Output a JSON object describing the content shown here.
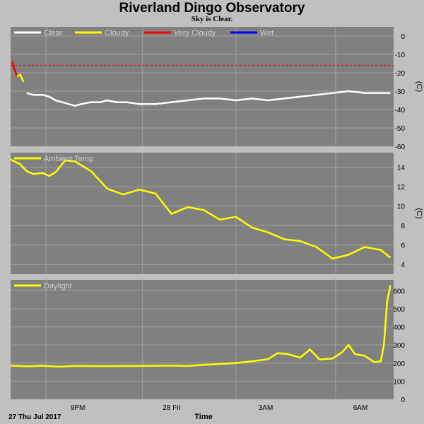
{
  "title": "Riverland Dingo Observatory",
  "subtitle": "Sky is Clear.",
  "colors": {
    "background": "#c0c0c0",
    "plot_bg": "#808080",
    "grid": "#a0a0a0",
    "clear": "#ffffff",
    "cloudy": "#ffff00",
    "very_cloudy": "#ff0000",
    "wet": "#0000ff",
    "threshold": "#ff0000"
  },
  "x_axis": {
    "ticks": [
      "9PM",
      "28 Fri",
      "3AM",
      "6AM"
    ],
    "start_label": "27 Thu Jul 2017",
    "xlabel": "Time"
  },
  "chart_data": [
    {
      "type": "line",
      "name": "sky-temperature",
      "ylabel": "(C)",
      "ylim": [
        -60,
        5
      ],
      "yticks": [
        0,
        -10,
        -20,
        -30,
        -40,
        -50,
        -60
      ],
      "grid": true,
      "legend_position": "top-left",
      "legend": [
        "Clear",
        "Cloudy",
        "Very Cloudy",
        "Wet"
      ],
      "threshold": -16,
      "x": [
        0,
        0.2,
        0.4,
        0.5,
        0.7,
        1.0,
        1.2,
        1.4,
        1.6,
        1.8,
        2.0,
        2.2,
        2.5,
        2.8,
        3.0,
        3.3,
        3.6,
        4.0,
        4.5,
        5.0,
        5.5,
        6.0,
        6.5,
        7.0,
        7.5,
        8.0,
        8.5,
        9.0,
        9.5,
        10.0,
        10.5,
        11.0,
        11.5,
        11.8
      ],
      "series": [
        {
          "name": "Very Cloudy",
          "x": [
            0.05,
            0.12,
            0.2
          ],
          "values": [
            -14,
            -18,
            -22
          ]
        },
        {
          "name": "Cloudy",
          "x": [
            0.2,
            0.3,
            0.4
          ],
          "values": [
            -22,
            -21,
            -25
          ]
        },
        {
          "name": "Clear",
          "values": [
            null,
            null,
            null,
            -31,
            -32,
            -32,
            -33,
            -35,
            -36,
            -37,
            -38,
            -37,
            -36,
            -36,
            -35,
            -36,
            -36,
            -37,
            -37,
            -36,
            -35,
            -34,
            -34,
            -35,
            -34,
            -35,
            -34,
            -33,
            -32,
            -31,
            -30,
            -31,
            -31,
            -31
          ]
        }
      ]
    },
    {
      "type": "line",
      "name": "ambient-temperature",
      "ylabel": "(C)",
      "ylim": [
        3,
        15.5
      ],
      "yticks": [
        14,
        12,
        10,
        8,
        6,
        4
      ],
      "grid": true,
      "legend_position": "top-left",
      "series": [
        {
          "name": "Ambient Temp",
          "x": [
            0,
            0.3,
            0.5,
            0.7,
            1.0,
            1.2,
            1.4,
            1.7,
            2.0,
            2.5,
            3.0,
            3.5,
            4.0,
            4.5,
            5.0,
            5.5,
            6.0,
            6.5,
            7.0,
            7.5,
            8.0,
            8.5,
            9.0,
            9.5,
            10.0,
            10.5,
            11.0,
            11.5,
            11.8
          ],
          "values": [
            14.8,
            14.3,
            13.6,
            13.3,
            13.4,
            13.1,
            13.5,
            14.7,
            14.6,
            13.6,
            11.8,
            11.2,
            11.7,
            11.3,
            9.2,
            9.9,
            9.6,
            8.6,
            8.9,
            7.8,
            7.3,
            6.6,
            6.4,
            5.8,
            4.6,
            5.0,
            5.8,
            5.5,
            4.7
          ]
        }
      ]
    },
    {
      "type": "line",
      "name": "daylight",
      "ylabel": "",
      "ylim": [
        0,
        660
      ],
      "yticks": [
        600,
        500,
        400,
        300,
        200,
        100,
        0
      ],
      "grid": true,
      "legend_position": "top-left",
      "series": [
        {
          "name": "Daylight",
          "x": [
            0,
            0.5,
            1.0,
            1.5,
            2.0,
            3.0,
            4.0,
            5.0,
            5.5,
            6.0,
            6.5,
            7.0,
            7.5,
            8.0,
            8.3,
            8.6,
            9.0,
            9.3,
            9.6,
            10.0,
            10.3,
            10.5,
            10.7,
            11.0,
            11.3,
            11.5,
            11.6,
            11.7,
            11.8
          ],
          "values": [
            186,
            182,
            185,
            180,
            184,
            183,
            184,
            186,
            184,
            190,
            195,
            200,
            210,
            222,
            255,
            250,
            230,
            275,
            220,
            225,
            260,
            300,
            250,
            240,
            205,
            210,
            300,
            540,
            630
          ]
        }
      ]
    }
  ]
}
